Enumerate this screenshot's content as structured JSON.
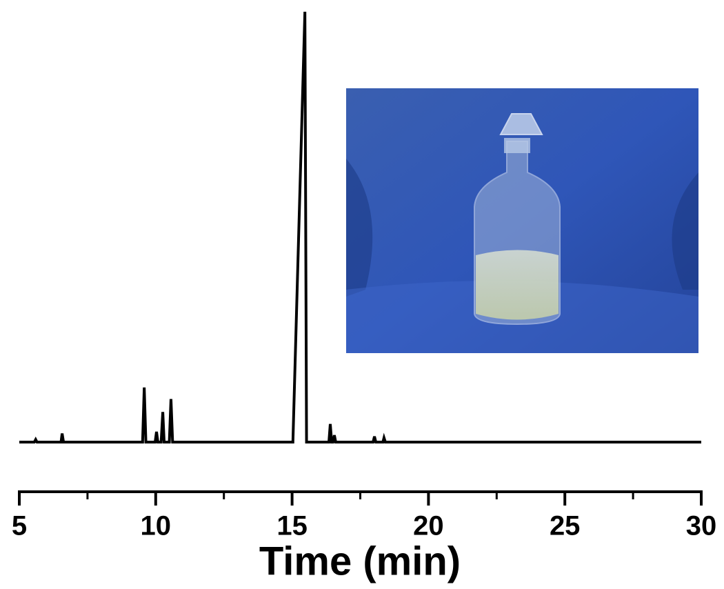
{
  "chart_data": {
    "type": "line",
    "xlabel": "Time (min)",
    "xlim": [
      5,
      30
    ],
    "xticks": [
      5,
      10,
      15,
      20,
      25,
      30
    ],
    "xminor_ticks": [
      7.5,
      12.5,
      17.5,
      22.5,
      27.5
    ],
    "series": [
      {
        "color": "#000000",
        "x": [
          5,
          5.55,
          5.6,
          5.65,
          6.53,
          6.57,
          6.62,
          9.52,
          9.58,
          9.64,
          9.98,
          10.03,
          10.08,
          10.2,
          10.26,
          10.31,
          10.5,
          10.56,
          10.62,
          15.03,
          15.47,
          15.53,
          16.35,
          16.4,
          16.45,
          16.5,
          16.55,
          16.6,
          17.97,
          18.02,
          18.07,
          18.33,
          18.37,
          18.42,
          30
        ],
        "values": [
          0,
          0,
          0.6,
          0,
          0,
          2,
          0,
          0,
          12.7,
          0,
          0,
          2.4,
          0,
          0,
          7,
          0,
          0,
          10,
          0,
          0,
          100,
          0,
          0,
          4.2,
          0,
          0,
          1.6,
          0,
          0,
          1.3,
          0,
          0,
          1,
          0,
          0
        ]
      }
    ]
  }
}
